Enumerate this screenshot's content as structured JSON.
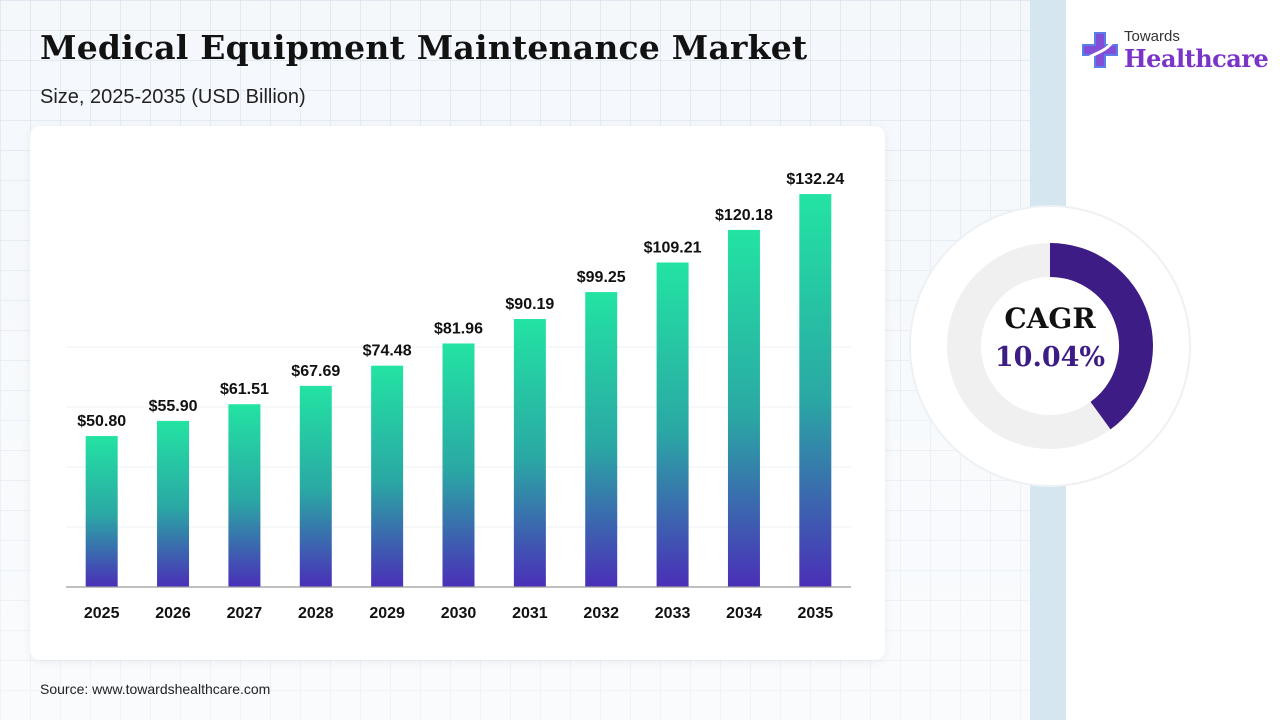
{
  "header": {
    "title": "Medical Equipment Maintenance Market",
    "subtitle": "Size, 2025-2035 (USD Billion)"
  },
  "source": "Source: www.towardshealthcare.com",
  "logo": {
    "small": "Towards",
    "big": "Healthcare"
  },
  "cagr": {
    "label": "CAGR",
    "value": "10.04%",
    "fraction": 0.4
  },
  "colors": {
    "bar_top": "#23e3a3",
    "bar_mid": "#2aa8a4",
    "bar_bottom": "#4a2fb8",
    "cagr_arc": "#3d1d85",
    "cagr_track": "#f0f0f0",
    "logo_purple": "#7a35c8",
    "logo_cross": "#5b7de8"
  },
  "chart_data": {
    "type": "bar",
    "categories": [
      "2025",
      "2026",
      "2027",
      "2028",
      "2029",
      "2030",
      "2031",
      "2032",
      "2033",
      "2034",
      "2035"
    ],
    "values": [
      50.8,
      55.9,
      61.51,
      67.69,
      74.48,
      81.96,
      90.19,
      99.25,
      109.21,
      120.18,
      132.24
    ],
    "data_labels": [
      "$50.80",
      "$55.90",
      "$61.51",
      "$67.69",
      "$74.48",
      "$81.96",
      "$90.19",
      "$99.25",
      "$109.21",
      "$120.18",
      "$132.24"
    ],
    "title": "Medical Equipment Maintenance Market",
    "subtitle": "Size, 2025-2035 (USD Billion)",
    "xlabel": "",
    "ylabel": "",
    "ylim": [
      0,
      140
    ],
    "grid": true,
    "legend": "none"
  }
}
